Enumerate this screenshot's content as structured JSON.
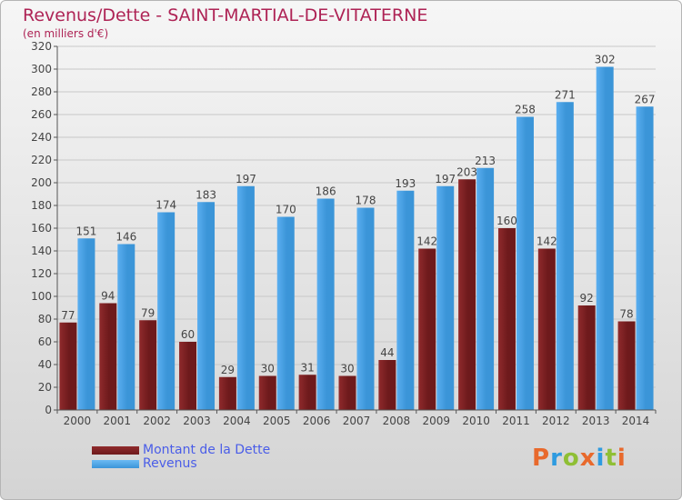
{
  "header": {
    "title": "Revenus/Dette - SAINT-MARTIAL-DE-VITATERNE",
    "subtitle": "(en milliers d'€)"
  },
  "brand": {
    "name": "Proxiti",
    "letter_colors": [
      "#e8692c",
      "#2e9be0",
      "#8fbf35",
      "#e8692c",
      "#2e9be0",
      "#8fbf35",
      "#e8692c"
    ]
  },
  "colors": {
    "dette": "#6e1a1c",
    "revenus": "#3b95d8",
    "axis": "#555555",
    "grid": "#c8c8c8",
    "text": "#444444",
    "title": "#ae2355",
    "legend_text": "#4a5de8"
  },
  "chart_data": {
    "type": "bar",
    "title": "Revenus/Dette - SAINT-MARTIAL-DE-VITATERNE",
    "subtitle": "(en milliers d'€)",
    "categories": [
      "2000",
      "2001",
      "2002",
      "2003",
      "2004",
      "2005",
      "2006",
      "2007",
      "2008",
      "2009",
      "2010",
      "2011",
      "2012",
      "2013",
      "2014"
    ],
    "series": [
      {
        "name": "Montant de la Dette",
        "values": [
          77,
          94,
          79,
          60,
          29,
          30,
          31,
          30,
          44,
          142,
          203,
          160,
          142,
          92,
          78
        ]
      },
      {
        "name": "Revenus",
        "values": [
          151,
          146,
          174,
          183,
          197,
          170,
          186,
          178,
          193,
          197,
          213,
          258,
          271,
          302,
          267
        ]
      }
    ],
    "ylim": [
      0,
      320
    ],
    "yticks": [
      0,
      20,
      40,
      60,
      80,
      100,
      120,
      140,
      160,
      180,
      200,
      220,
      240,
      260,
      280,
      300,
      320
    ],
    "grid": true,
    "legend_position": "bottom-left"
  }
}
